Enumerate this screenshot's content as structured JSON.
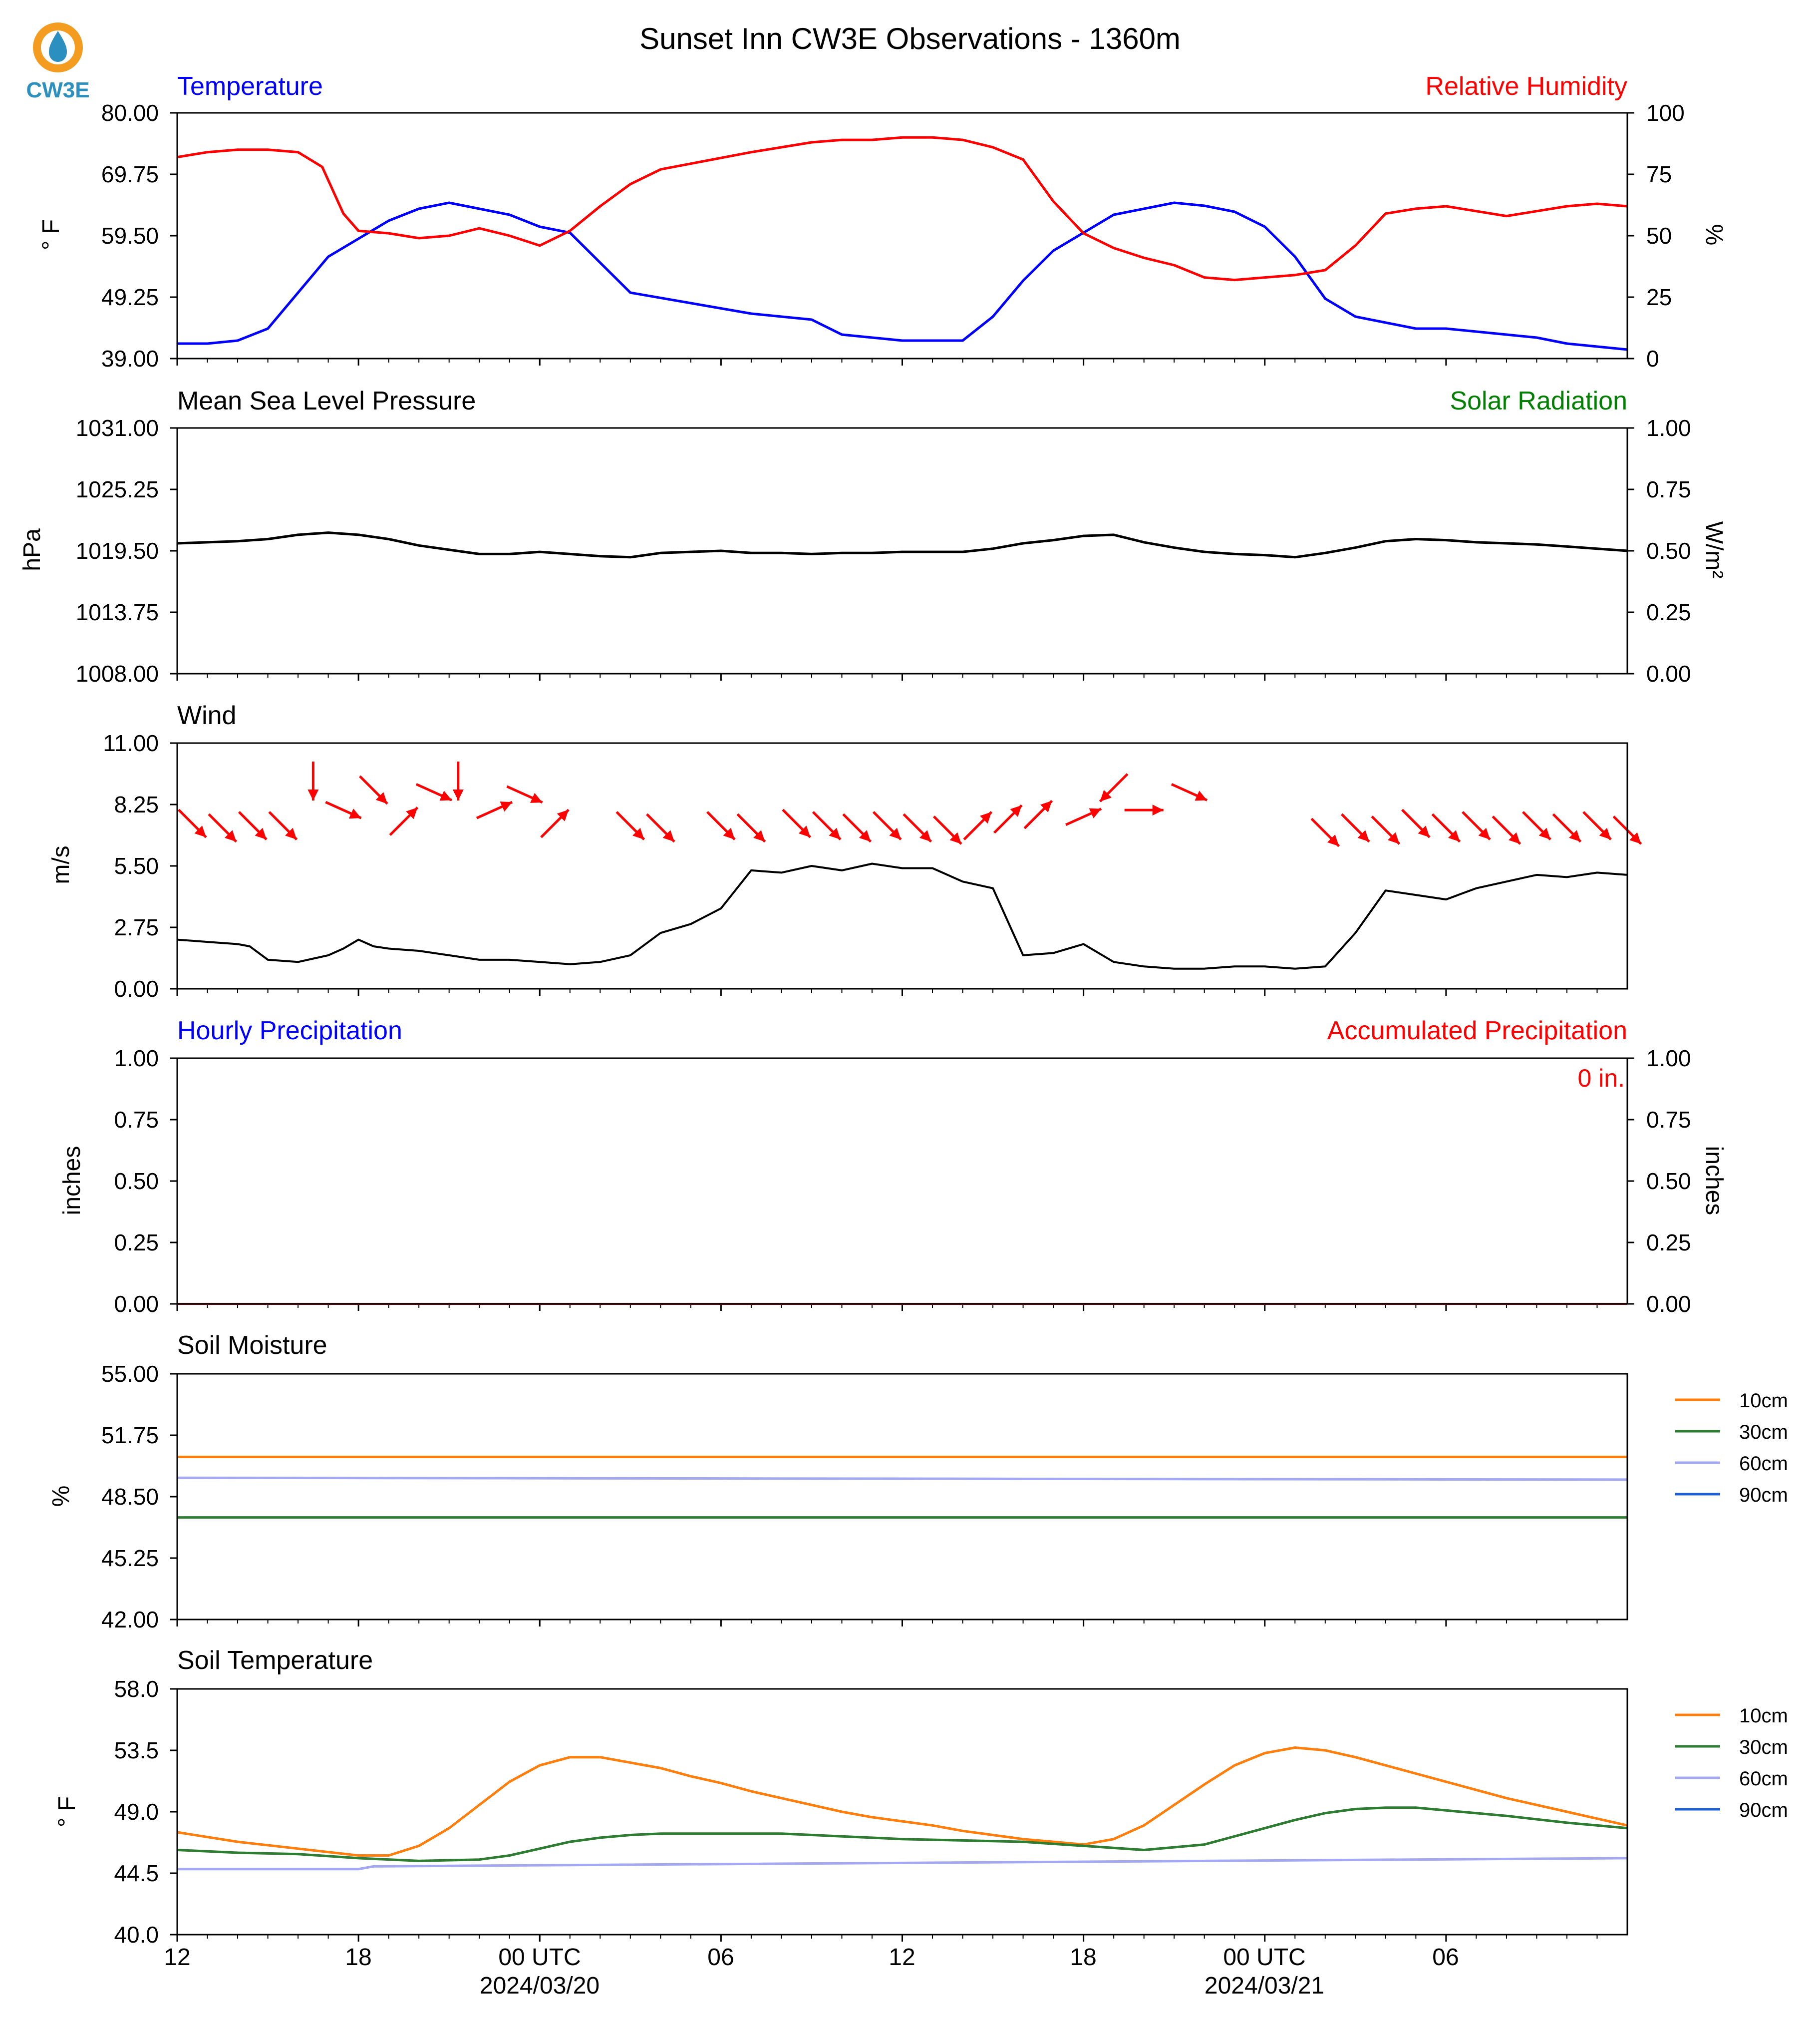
{
  "logo": {
    "text": "CW3E",
    "ring_color": "#f39c1f",
    "drop_color": "#2b8fc0"
  },
  "title": "Sunset Inn CW3E Observations - 1360m",
  "x_axis": {
    "range_hours": [
      0,
      48
    ],
    "ticks": [
      {
        "hour": 0,
        "label": "12"
      },
      {
        "hour": 6,
        "label": "18"
      },
      {
        "hour": 12,
        "label": "00 UTC"
      },
      {
        "hour": 18,
        "label": "06"
      },
      {
        "hour": 24,
        "label": "12"
      },
      {
        "hour": 30,
        "label": "18"
      },
      {
        "hour": 36,
        "label": "00 UTC"
      },
      {
        "hour": 42,
        "label": "06"
      }
    ],
    "dates": [
      {
        "hour": 12,
        "label": "2024/03/20"
      },
      {
        "hour": 36,
        "label": "2024/03/21"
      }
    ]
  },
  "panels": {
    "temperature": {
      "left_title": "Temperature",
      "right_title": "Relative Humidity",
      "left_title_color": "#0000ff",
      "right_title_color": "#ff0000",
      "ylabel": "° F",
      "ylabel_right": "%",
      "yticks": [
        "80.00",
        "69.75",
        "59.50",
        "49.25",
        "39.00"
      ],
      "yticks_right": [
        "100",
        "75",
        "50",
        "25",
        "0"
      ]
    },
    "pressure": {
      "left_title": "Mean Sea Level Pressure",
      "right_title": "Solar Radiation",
      "right_title_color": "#008000",
      "ylabel": "hPa",
      "ylabel_right": "W/m²",
      "yticks": [
        "1031.00",
        "1025.25",
        "1019.50",
        "1013.75",
        "1008.00"
      ],
      "yticks_right": [
        "1.00",
        "0.75",
        "0.50",
        "0.25",
        "0.00"
      ]
    },
    "wind": {
      "left_title": "Wind",
      "ylabel": "m/s",
      "yticks": [
        "11.00",
        "8.25",
        "5.50",
        "2.75",
        "0.00"
      ]
    },
    "precip": {
      "left_title": "Hourly Precipitation",
      "right_title": "Accumulated Precipitation",
      "left_title_color": "#0000ff",
      "right_title_color": "#ff0000",
      "ylabel": "inches",
      "ylabel_right": "inches",
      "yticks": [
        "1.00",
        "0.75",
        "0.50",
        "0.25",
        "0.00"
      ],
      "yticks_right": [
        "1.00",
        "0.75",
        "0.50",
        "0.25",
        "0.00"
      ],
      "annotation": "0 in."
    },
    "soil_moisture": {
      "left_title": "Soil Moisture",
      "ylabel": "%",
      "yticks": [
        "55.00",
        "51.75",
        "48.50",
        "45.25",
        "42.00"
      ],
      "legend": [
        "10cm",
        "30cm",
        "60cm",
        "90cm"
      ]
    },
    "soil_temp": {
      "left_title": "Soil Temperature",
      "ylabel": "° F",
      "yticks": [
        "58.0",
        "53.5",
        "49.0",
        "44.5",
        "40.0"
      ],
      "legend": [
        "10cm",
        "30cm",
        "60cm",
        "90cm"
      ]
    }
  },
  "colors": {
    "temperature": "#0000ff",
    "humidity": "#ff0000",
    "pressure": "#000000",
    "wind_speed": "#000000",
    "wind_arrow": "#ff0000",
    "depth_10cm": "#ff7f0e",
    "depth_30cm": "#2e7d32",
    "depth_60cm": "#a3a8f0",
    "depth_90cm": "#1f5fd6"
  },
  "chart_data": [
    {
      "type": "line",
      "title": "Temperature",
      "xlabel": "",
      "ylabel": "° F",
      "ylim": [
        39,
        80
      ],
      "y2lim": [
        0,
        100
      ],
      "series": [
        {
          "name": "Temperature",
          "axis": "left",
          "x": [
            0,
            1,
            2,
            3,
            4,
            5,
            6,
            7,
            8,
            9,
            10,
            11,
            12,
            13,
            14,
            15,
            19,
            20,
            21,
            22,
            23,
            24,
            25,
            26,
            27,
            28,
            29,
            30,
            31,
            32,
            33,
            34,
            35,
            36,
            37,
            38,
            39,
            40,
            41,
            42,
            43,
            44,
            45,
            46,
            47,
            48
          ],
          "y": [
            41.5,
            41.5,
            42,
            44,
            50,
            56,
            59,
            62,
            64,
            65,
            64,
            63,
            61,
            60,
            55,
            50,
            46.5,
            46,
            45.5,
            43,
            42.5,
            42,
            42,
            42,
            46,
            52,
            57,
            60,
            63,
            64,
            65,
            64.5,
            63.5,
            61,
            56,
            49,
            46,
            45,
            44,
            44,
            43.5,
            43,
            42.5,
            41.5,
            41,
            40.5
          ]
        },
        {
          "name": "Relative Humidity",
          "axis": "right",
          "x": [
            0,
            1,
            2,
            3,
            4,
            4.8,
            5.5,
            6,
            7,
            8,
            9,
            10,
            11,
            12,
            13,
            14,
            15,
            16,
            19,
            20,
            21,
            22,
            23,
            24,
            25,
            26,
            27,
            28,
            29,
            30,
            31,
            32,
            33,
            34,
            35,
            36,
            37,
            38,
            39,
            40,
            41,
            42,
            43,
            44,
            45,
            46,
            47,
            48
          ],
          "y": [
            82,
            84,
            85,
            85,
            84,
            78,
            59,
            52,
            51,
            49,
            50,
            53,
            50,
            46,
            52,
            62,
            71,
            77,
            84,
            86,
            88,
            89,
            89,
            90,
            90,
            89,
            86,
            81,
            64,
            51,
            45,
            41,
            38,
            33,
            32,
            33,
            34,
            36,
            46,
            59,
            61,
            62,
            60,
            58,
            60,
            62,
            63,
            62
          ]
        }
      ]
    },
    {
      "type": "line",
      "title": "Mean Sea Level Pressure",
      "ylabel": "hPa",
      "ylim": [
        1008,
        1031
      ],
      "y2lim": [
        0,
        1
      ],
      "series": [
        {
          "name": "Mean Sea Level Pressure",
          "x": [
            0,
            1,
            2,
            3,
            4,
            5,
            6,
            7,
            8,
            9,
            10,
            11,
            12,
            13,
            14,
            15,
            16,
            17,
            18,
            19,
            20,
            21,
            22,
            23,
            24,
            25,
            26,
            27,
            28,
            29,
            30,
            31,
            32,
            33,
            34,
            35,
            36,
            37,
            38,
            39,
            40,
            41,
            42,
            43,
            44,
            45,
            46,
            47,
            48
          ],
          "y": [
            1020.2,
            1020.3,
            1020.4,
            1020.6,
            1021,
            1021.2,
            1021,
            1020.6,
            1020,
            1019.6,
            1019.2,
            1019.2,
            1019.4,
            1019.2,
            1019,
            1018.9,
            1019.3,
            1019.4,
            1019.5,
            1019.3,
            1019.3,
            1019.2,
            1019.3,
            1019.3,
            1019.4,
            1019.4,
            1019.4,
            1019.7,
            1020.2,
            1020.5,
            1020.9,
            1021,
            1020.3,
            1019.8,
            1019.4,
            1019.2,
            1019.1,
            1018.9,
            1019.3,
            1019.8,
            1020.4,
            1020.6,
            1020.5,
            1020.3,
            1020.2,
            1020.1,
            1019.9,
            1019.7,
            1019.5
          ]
        }
      ]
    },
    {
      "type": "line",
      "title": "Wind",
      "ylabel": "m/s",
      "ylim": [
        0,
        11
      ],
      "series": [
        {
          "name": "Wind Speed",
          "x": [
            0,
            1,
            2,
            2.4,
            3,
            4,
            5,
            5.5,
            6,
            6.5,
            7,
            8,
            9,
            10,
            11,
            12,
            13,
            14,
            15,
            16,
            17,
            18,
            19,
            20,
            21,
            22,
            23,
            24,
            25,
            26,
            27,
            28,
            29,
            30,
            31,
            32,
            33,
            34,
            35,
            36,
            37,
            38,
            39,
            40,
            41,
            42,
            43,
            44,
            45,
            46,
            47,
            48
          ],
          "y": [
            2.2,
            2.1,
            2.0,
            1.9,
            1.3,
            1.2,
            1.5,
            1.8,
            2.2,
            1.9,
            1.8,
            1.7,
            1.5,
            1.3,
            1.3,
            1.2,
            1.1,
            1.2,
            1.5,
            2.5,
            2.9,
            3.6,
            5.3,
            5.2,
            5.5,
            5.3,
            5.6,
            5.4,
            5.4,
            4.8,
            4.5,
            1.5,
            1.6,
            2.0,
            1.2,
            1.0,
            0.9,
            0.9,
            1.0,
            1.0,
            0.9,
            1.0,
            2.5,
            4.4,
            4.2,
            4.0,
            4.5,
            4.8,
            5.1,
            5.0,
            5.2,
            5.1
          ]
        }
      ],
      "barbs": [
        {
          "x": 0.5,
          "dir": "NW",
          "y": 7.4
        },
        {
          "x": 1.5,
          "dir": "NW",
          "y": 7.2
        },
        {
          "x": 2.5,
          "dir": "NW",
          "y": 7.3
        },
        {
          "x": 3.5,
          "dir": "NW",
          "y": 7.3
        },
        {
          "x": 4.5,
          "dir": "S",
          "y": 9.3
        },
        {
          "x": 5.5,
          "dir": "WNW",
          "y": 8.0
        },
        {
          "x": 6.5,
          "dir": "NW",
          "y": 8.9
        },
        {
          "x": 7.5,
          "dir": "SW",
          "y": 7.5
        },
        {
          "x": 8.5,
          "dir": "WNW",
          "y": 8.8
        },
        {
          "x": 9.3,
          "dir": "S",
          "y": 9.3
        },
        {
          "x": 10.5,
          "dir": "WSW",
          "y": 8.0
        },
        {
          "x": 11.5,
          "dir": "WNW",
          "y": 8.7
        },
        {
          "x": 12.5,
          "dir": "SW",
          "y": 7.4
        },
        {
          "x": 15,
          "dir": "NW",
          "y": 7.3
        },
        {
          "x": 16,
          "dir": "NW",
          "y": 7.2
        },
        {
          "x": 18,
          "dir": "NW",
          "y": 7.3
        },
        {
          "x": 19,
          "dir": "NW",
          "y": 7.2
        },
        {
          "x": 20.5,
          "dir": "NW",
          "y": 7.4
        },
        {
          "x": 21.5,
          "dir": "NW",
          "y": 7.3
        },
        {
          "x": 22.5,
          "dir": "NW",
          "y": 7.2
        },
        {
          "x": 23.5,
          "dir": "NW",
          "y": 7.3
        },
        {
          "x": 24.5,
          "dir": "NW",
          "y": 7.2
        },
        {
          "x": 25.5,
          "dir": "NW",
          "y": 7.1
        },
        {
          "x": 26.5,
          "dir": "SW",
          "y": 7.3
        },
        {
          "x": 27.5,
          "dir": "SW",
          "y": 7.6
        },
        {
          "x": 28.5,
          "dir": "SW",
          "y": 7.8
        },
        {
          "x": 30,
          "dir": "WSW",
          "y": 7.7
        },
        {
          "x": 31,
          "dir": "SE",
          "y": 9.0
        },
        {
          "x": 32,
          "dir": "W",
          "y": 8.0
        },
        {
          "x": 33.5,
          "dir": "WNW",
          "y": 8.8
        },
        {
          "x": 38,
          "dir": "NW",
          "y": 7.0
        },
        {
          "x": 39,
          "dir": "NW",
          "y": 7.2
        },
        {
          "x": 40,
          "dir": "NW",
          "y": 7.1
        },
        {
          "x": 41,
          "dir": "NW",
          "y": 7.4
        },
        {
          "x": 42,
          "dir": "NW",
          "y": 7.2
        },
        {
          "x": 43,
          "dir": "NW",
          "y": 7.3
        },
        {
          "x": 44,
          "dir": "NW",
          "y": 7.1
        },
        {
          "x": 45,
          "dir": "NW",
          "y": 7.3
        },
        {
          "x": 46,
          "dir": "NW",
          "y": 7.2
        },
        {
          "x": 47,
          "dir": "NW",
          "y": 7.3
        },
        {
          "x": 48,
          "dir": "NW",
          "y": 7.1
        }
      ]
    },
    {
      "type": "line",
      "title": "Hourly Precipitation",
      "ylabel": "inches",
      "ylim": [
        0,
        1
      ],
      "y2lim": [
        0,
        1
      ],
      "series": [
        {
          "name": "Hourly Precipitation",
          "x": [
            0,
            48
          ],
          "y": [
            0,
            0
          ]
        },
        {
          "name": "Accumulated Precipitation",
          "x": [
            0,
            48
          ],
          "y": [
            0,
            0
          ]
        }
      ]
    },
    {
      "type": "line",
      "title": "Soil Moisture",
      "ylabel": "%",
      "ylim": [
        42,
        55
      ],
      "series": [
        {
          "name": "10cm",
          "x": [
            0,
            48
          ],
          "y": [
            50.6,
            50.6
          ]
        },
        {
          "name": "30cm",
          "x": [
            0,
            48
          ],
          "y": [
            47.4,
            47.4
          ]
        },
        {
          "name": "60cm",
          "x": [
            0,
            48
          ],
          "y": [
            49.5,
            49.4
          ]
        },
        {
          "name": "90cm",
          "x": [],
          "y": []
        }
      ]
    },
    {
      "type": "line",
      "title": "Soil Temperature",
      "ylabel": "° F",
      "ylim": [
        40,
        58
      ],
      "series": [
        {
          "name": "10cm",
          "x": [
            0,
            2,
            4,
            6,
            7,
            8,
            9,
            10,
            11,
            12,
            13,
            14,
            15,
            16,
            17,
            18,
            19,
            20,
            21,
            22,
            23,
            24,
            25,
            26,
            27,
            28,
            29,
            30,
            31,
            32,
            33,
            34,
            35,
            36,
            37,
            38,
            39,
            40,
            41,
            42,
            43,
            44,
            45,
            46,
            47,
            48
          ],
          "y": [
            47.5,
            46.8,
            46.3,
            45.8,
            45.8,
            46.5,
            47.8,
            49.5,
            51.2,
            52.4,
            53,
            53,
            52.6,
            52.2,
            51.6,
            51.1,
            50.5,
            50,
            49.5,
            49,
            48.6,
            48.3,
            48,
            47.6,
            47.3,
            47,
            46.8,
            46.6,
            47,
            48,
            49.5,
            51,
            52.4,
            53.3,
            53.7,
            53.5,
            53,
            52.4,
            51.8,
            51.2,
            50.6,
            50,
            49.5,
            49,
            48.5,
            48
          ]
        },
        {
          "name": "30cm",
          "x": [
            0,
            2,
            4,
            6,
            8,
            10,
            11,
            12,
            13,
            14,
            15,
            16,
            18,
            20,
            22,
            24,
            26,
            28,
            30,
            32,
            34,
            36,
            37,
            38,
            39,
            40,
            41,
            42,
            44,
            46,
            48
          ],
          "y": [
            46.2,
            46,
            45.9,
            45.6,
            45.4,
            45.5,
            45.8,
            46.3,
            46.8,
            47.1,
            47.3,
            47.4,
            47.4,
            47.4,
            47.2,
            47,
            46.9,
            46.8,
            46.5,
            46.2,
            46.6,
            47.8,
            48.4,
            48.9,
            49.2,
            49.3,
            49.3,
            49.1,
            48.7,
            48.2,
            47.8
          ]
        },
        {
          "name": "60cm",
          "x": [
            0,
            6,
            6.5,
            48
          ],
          "y": [
            44.8,
            44.8,
            45.0,
            45.6
          ]
        },
        {
          "name": "90cm",
          "x": [],
          "y": []
        }
      ]
    }
  ]
}
